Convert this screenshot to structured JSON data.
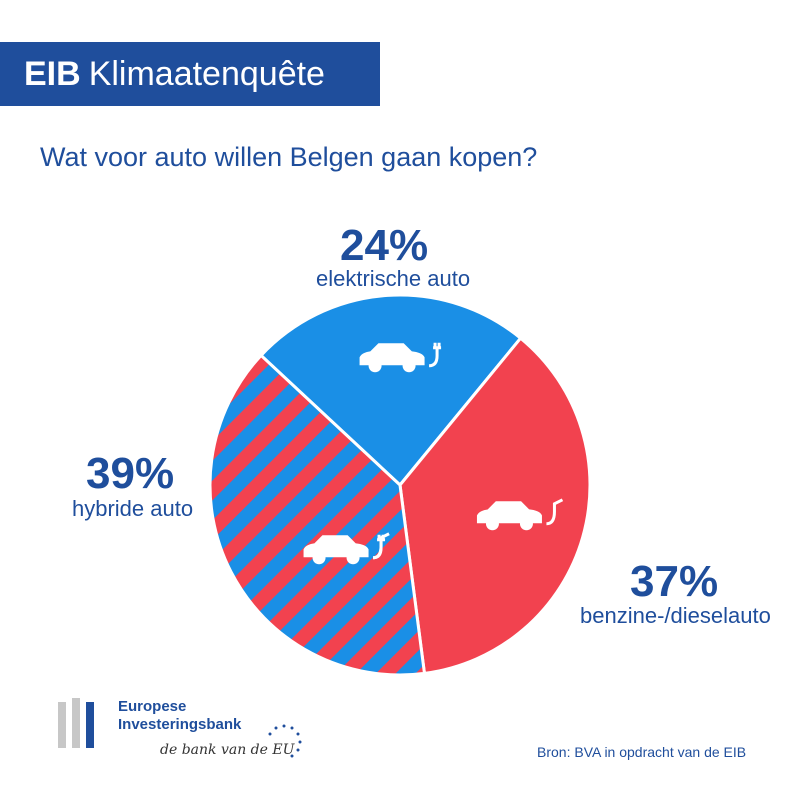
{
  "header": {
    "brand": "EIB",
    "title": "Klimaatenquête"
  },
  "question": "Wat voor auto willen Belgen gaan kopen?",
  "colors": {
    "electric": "#1a8fe6",
    "fuel": "#f2424f",
    "hybrid_stripe_a": "#1a8fe6",
    "hybrid_stripe_b": "#f2424f",
    "brand_blue": "#1f4e9c"
  },
  "chart_data": {
    "type": "pie",
    "title": "Wat voor auto willen Belgen gaan kopen?",
    "slices": [
      {
        "label": "elektrische auto",
        "value": 24,
        "display": "24%",
        "icon": "electric-car-icon"
      },
      {
        "label": "benzine-/dieselauto",
        "value": 37,
        "display": "37%",
        "icon": "fuel-car-icon"
      },
      {
        "label": "hybride auto",
        "value": 39,
        "display": "39%",
        "icon": "hybrid-car-icon"
      }
    ]
  },
  "footer": {
    "logo_line1": "Europese",
    "logo_line2": "Investeringsbank",
    "tagline": "de bank van de EU",
    "source": "Bron: BVA in opdracht van de EIB"
  }
}
